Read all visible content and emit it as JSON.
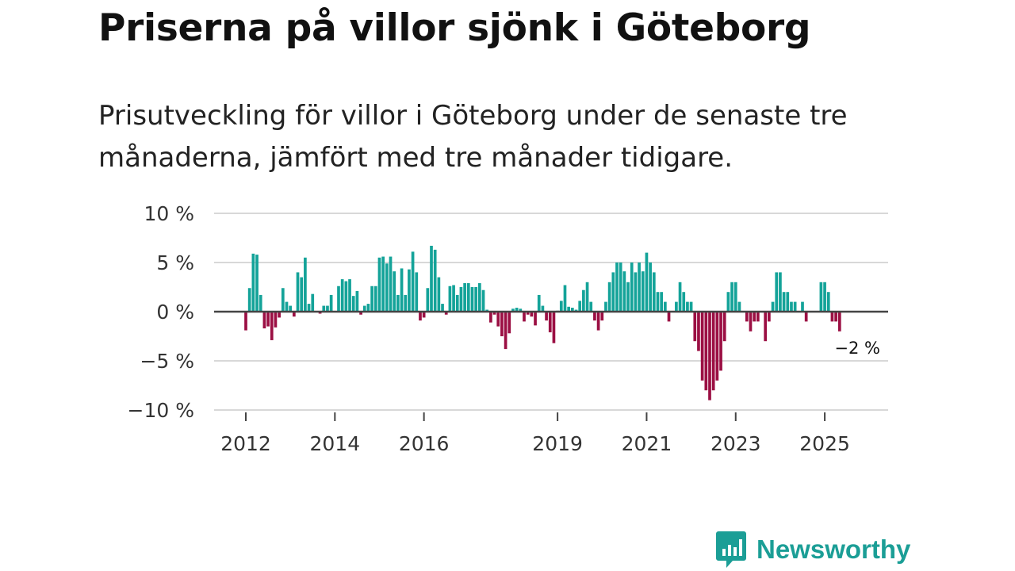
{
  "header": {
    "title": "Priserna på villor sjönk i Göteborg",
    "subtitle": "Prisutveckling för villor i Göteborg under de senaste tre månaderna, jämfört med tre månader tidigare."
  },
  "brand": {
    "name": "Newsworthy",
    "color": "#1b9e96"
  },
  "colors": {
    "positive": "#14a399",
    "negative": "#9b0f43",
    "zero_line": "#444444",
    "grid": "#d8d8d8"
  },
  "chart_data": {
    "type": "bar",
    "title": "Priserna på villor sjönk i Göteborg",
    "ylabel": "",
    "xlabel": "",
    "ylim": [
      -10,
      10
    ],
    "yticks": [
      10,
      5,
      0,
      -5,
      -10
    ],
    "ytick_labels": [
      "10 %",
      "5 %",
      "0 %",
      "−5 %",
      "−10 %"
    ],
    "xticks": [
      {
        "month_index": 0,
        "label": "2012"
      },
      {
        "month_index": 24,
        "label": "2014"
      },
      {
        "month_index": 48,
        "label": "2016"
      },
      {
        "month_index": 84,
        "label": "2019"
      },
      {
        "month_index": 108,
        "label": "2021"
      },
      {
        "month_index": 132,
        "label": "2023"
      },
      {
        "month_index": 156,
        "label": "2025"
      }
    ],
    "start_month": "2012-01",
    "end_label": "−2 %",
    "values": [
      -1.9,
      2.4,
      5.9,
      5.8,
      1.7,
      -1.7,
      -1.5,
      -2.9,
      -1.6,
      -0.6,
      2.4,
      1.0,
      0.6,
      -0.5,
      4.0,
      3.5,
      5.5,
      0.8,
      1.8,
      0,
      -0.2,
      0.6,
      0.6,
      1.7,
      0,
      2.6,
      3.3,
      3.1,
      3.3,
      1.6,
      2.1,
      -0.3,
      0.6,
      0.8,
      2.6,
      2.6,
      5.5,
      5.6,
      4.9,
      5.6,
      4.1,
      1.7,
      4.4,
      1.7,
      4.3,
      6.1,
      4.0,
      -0.9,
      -0.6,
      2.4,
      6.7,
      6.3,
      3.5,
      0.8,
      -0.3,
      2.6,
      2.7,
      1.7,
      2.5,
      2.9,
      2.9,
      2.5,
      2.5,
      2.9,
      2.2,
      0.2,
      -1.1,
      -0.3,
      -1.5,
      -2.5,
      -3.8,
      -2.2,
      0.3,
      0.4,
      0.3,
      -1.0,
      -0.3,
      -0.5,
      -1.4,
      1.7,
      0.6,
      -0.9,
      -2.1,
      -3.2,
      0.1,
      1.1,
      2.7,
      0.5,
      0.4,
      0.2,
      1.1,
      2.2,
      3.0,
      1.0,
      -0.9,
      -1.9,
      -0.9,
      1.0,
      3.0,
      4.0,
      5.0,
      5.0,
      4.1,
      3.0,
      5.0,
      4.0,
      5.0,
      4.1,
      6.0,
      5.0,
      4.0,
      2.0,
      2.0,
      1.0,
      -1.0,
      0,
      1.0,
      3.0,
      2.0,
      1.0,
      1.0,
      -3.0,
      -4.0,
      -7.0,
      -8.0,
      -9.0,
      -8.0,
      -7.0,
      -6.0,
      -3.0,
      2.0,
      3.0,
      3.0,
      1.0,
      0,
      -1.0,
      -2.0,
      -1.0,
      -1.0,
      0,
      -3.0,
      -1.0,
      1.0,
      4.0,
      4.0,
      2.0,
      2.0,
      1.0,
      1.0,
      0,
      1.0,
      -1.0,
      0,
      0,
      0,
      3.0,
      3.0,
      2.0,
      -1.0,
      -1.0,
      -2.0
    ]
  }
}
